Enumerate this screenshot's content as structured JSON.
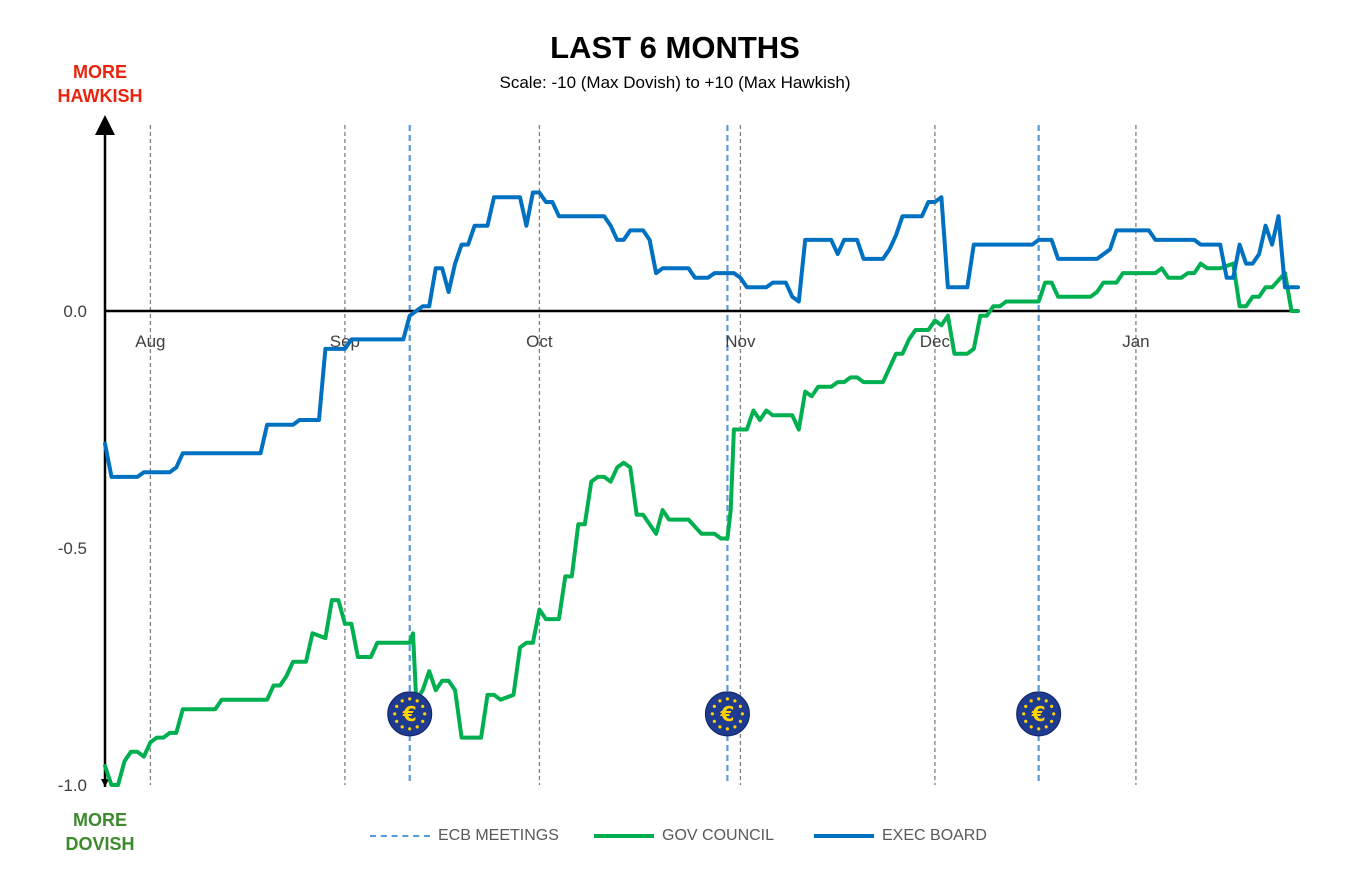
{
  "chart_data": {
    "type": "line",
    "title": "LAST 6 MONTHS",
    "subtitle": "Scale: -10 (Max Dovish)  to +10 (Max Hawkish)",
    "y_top_label": [
      "MORE",
      "HAWKISH"
    ],
    "y_bottom_label": [
      "MORE",
      "DOVISH"
    ],
    "ylim": [
      -1.0,
      0.4
    ],
    "y_ticks": [
      {
        "value": 0.0,
        "label": "0.0"
      },
      {
        "value": -0.5,
        "label": "-0.5"
      },
      {
        "value": -1.0,
        "label": "-1.0"
      }
    ],
    "xlim": [
      0,
      184
    ],
    "month_ticks": [
      {
        "x": 7,
        "label": "Aug"
      },
      {
        "x": 37,
        "label": "Sep"
      },
      {
        "x": 67,
        "label": "Oct"
      },
      {
        "x": 98,
        "label": "Nov"
      },
      {
        "x": 128,
        "label": "Dec"
      },
      {
        "x": 159,
        "label": "Jan"
      }
    ],
    "ecb_meetings": [
      47,
      96,
      144
    ],
    "ecb_marker_y": -0.85,
    "ecb_icon": "euro-icon",
    "grid": "vertical-dashed-at-months",
    "colors": {
      "gov": "#00b050",
      "exec": "#0070c0",
      "meeting": "#5b9bd5",
      "grid": "#808080"
    },
    "legend": [
      {
        "key": "meeting",
        "label": "ECB MEETINGS",
        "style": "dashed"
      },
      {
        "key": "gov",
        "label": "GOV COUNCIL",
        "style": "solid"
      },
      {
        "key": "exec",
        "label": "EXEC BOARD",
        "style": "solid"
      }
    ],
    "series": [
      {
        "name": "GOV COUNCIL",
        "key": "gov",
        "points": [
          [
            0,
            -0.96
          ],
          [
            1,
            -1.0
          ],
          [
            2,
            -1.0
          ],
          [
            3,
            -0.95
          ],
          [
            4,
            -0.93
          ],
          [
            5,
            -0.93
          ],
          [
            6,
            -0.94
          ],
          [
            7,
            -0.91
          ],
          [
            8,
            -0.9
          ],
          [
            9,
            -0.9
          ],
          [
            10,
            -0.89
          ],
          [
            11,
            -0.89
          ],
          [
            12,
            -0.84
          ],
          [
            15,
            -0.84
          ],
          [
            17,
            -0.84
          ],
          [
            18,
            -0.82
          ],
          [
            19,
            -0.82
          ],
          [
            25,
            -0.82
          ],
          [
            26,
            -0.79
          ],
          [
            27,
            -0.79
          ],
          [
            28,
            -0.77
          ],
          [
            29,
            -0.74
          ],
          [
            31,
            -0.74
          ],
          [
            32,
            -0.68
          ],
          [
            34,
            -0.69
          ],
          [
            35,
            -0.61
          ],
          [
            36,
            -0.61
          ],
          [
            37,
            -0.66
          ],
          [
            38,
            -0.66
          ],
          [
            39,
            -0.73
          ],
          [
            41,
            -0.73
          ],
          [
            42,
            -0.7
          ],
          [
            47,
            -0.7
          ],
          [
            47.5,
            -0.68
          ],
          [
            48,
            -0.82
          ],
          [
            49,
            -0.8
          ],
          [
            50,
            -0.76
          ],
          [
            51,
            -0.8
          ],
          [
            52,
            -0.78
          ],
          [
            53,
            -0.78
          ],
          [
            54,
            -0.8
          ],
          [
            55,
            -0.9
          ],
          [
            58,
            -0.9
          ],
          [
            59,
            -0.81
          ],
          [
            60,
            -0.81
          ],
          [
            61,
            -0.82
          ],
          [
            63,
            -0.81
          ],
          [
            64,
            -0.71
          ],
          [
            65,
            -0.7
          ],
          [
            66,
            -0.7
          ],
          [
            67,
            -0.63
          ],
          [
            68,
            -0.65
          ],
          [
            70,
            -0.65
          ],
          [
            71,
            -0.56
          ],
          [
            72,
            -0.56
          ],
          [
            73,
            -0.45
          ],
          [
            74,
            -0.45
          ],
          [
            75,
            -0.36
          ],
          [
            76,
            -0.35
          ],
          [
            77,
            -0.35
          ],
          [
            78,
            -0.36
          ],
          [
            79,
            -0.33
          ],
          [
            80,
            -0.32
          ],
          [
            81,
            -0.33
          ],
          [
            82,
            -0.43
          ],
          [
            83,
            -0.43
          ],
          [
            85,
            -0.47
          ],
          [
            86,
            -0.42
          ],
          [
            87,
            -0.44
          ],
          [
            90,
            -0.44
          ],
          [
            92,
            -0.47
          ],
          [
            94,
            -0.47
          ],
          [
            95,
            -0.48
          ],
          [
            96,
            -0.48
          ],
          [
            96.5,
            -0.42
          ],
          [
            97,
            -0.25
          ],
          [
            99,
            -0.25
          ],
          [
            100,
            -0.21
          ],
          [
            101,
            -0.23
          ],
          [
            102,
            -0.21
          ],
          [
            103,
            -0.22
          ],
          [
            106,
            -0.22
          ],
          [
            107,
            -0.25
          ],
          [
            108,
            -0.17
          ],
          [
            109,
            -0.18
          ],
          [
            110,
            -0.16
          ],
          [
            112,
            -0.16
          ],
          [
            113,
            -0.15
          ],
          [
            114,
            -0.15
          ],
          [
            115,
            -0.14
          ],
          [
            116,
            -0.14
          ],
          [
            117,
            -0.15
          ],
          [
            120,
            -0.15
          ],
          [
            121,
            -0.12
          ],
          [
            122,
            -0.09
          ],
          [
            123,
            -0.09
          ],
          [
            124,
            -0.06
          ],
          [
            125,
            -0.04
          ],
          [
            127,
            -0.04
          ],
          [
            128,
            -0.02
          ],
          [
            129,
            -0.03
          ],
          [
            130,
            -0.01
          ],
          [
            131,
            -0.09
          ],
          [
            133,
            -0.09
          ],
          [
            134,
            -0.08
          ],
          [
            135,
            -0.01
          ],
          [
            136,
            -0.01
          ],
          [
            137,
            0.01
          ],
          [
            138,
            0.01
          ],
          [
            139,
            0.02
          ],
          [
            144,
            0.02
          ],
          [
            145,
            0.06
          ],
          [
            146,
            0.06
          ],
          [
            147,
            0.03
          ],
          [
            152,
            0.03
          ],
          [
            153,
            0.04
          ],
          [
            154,
            0.06
          ],
          [
            156,
            0.06
          ],
          [
            157,
            0.08
          ],
          [
            162,
            0.08
          ],
          [
            163,
            0.09
          ],
          [
            164,
            0.07
          ],
          [
            166,
            0.07
          ],
          [
            167,
            0.08
          ],
          [
            168,
            0.08
          ],
          [
            169,
            0.1
          ],
          [
            170,
            0.09
          ],
          [
            172,
            0.09
          ],
          [
            174,
            0.1
          ],
          [
            175,
            0.01
          ],
          [
            176,
            0.01
          ],
          [
            177,
            0.03
          ],
          [
            178,
            0.03
          ],
          [
            179,
            0.05
          ],
          [
            180,
            0.05
          ],
          [
            182,
            0.08
          ],
          [
            183,
            0.0
          ],
          [
            184,
            0.0
          ]
        ]
      },
      {
        "name": "EXEC BOARD",
        "key": "exec",
        "points": [
          [
            0,
            -0.28
          ],
          [
            1,
            -0.35
          ],
          [
            4,
            -0.35
          ],
          [
            5,
            -0.35
          ],
          [
            6,
            -0.34
          ],
          [
            10,
            -0.34
          ],
          [
            11,
            -0.33
          ],
          [
            12,
            -0.3
          ],
          [
            24,
            -0.3
          ],
          [
            25,
            -0.24
          ],
          [
            29,
            -0.24
          ],
          [
            30,
            -0.23
          ],
          [
            33,
            -0.23
          ],
          [
            34,
            -0.08
          ],
          [
            37,
            -0.08
          ],
          [
            38,
            -0.06
          ],
          [
            46,
            -0.06
          ],
          [
            47,
            -0.01
          ],
          [
            48,
            0.0
          ],
          [
            49,
            0.01
          ],
          [
            50,
            0.01
          ],
          [
            51,
            0.09
          ],
          [
            52,
            0.09
          ],
          [
            53,
            0.04
          ],
          [
            54,
            0.1
          ],
          [
            55,
            0.14
          ],
          [
            56,
            0.14
          ],
          [
            57,
            0.18
          ],
          [
            58,
            0.18
          ],
          [
            59,
            0.18
          ],
          [
            60,
            0.24
          ],
          [
            64,
            0.24
          ],
          [
            65,
            0.18
          ],
          [
            66,
            0.25
          ],
          [
            67,
            0.25
          ],
          [
            68,
            0.23
          ],
          [
            69,
            0.23
          ],
          [
            70,
            0.2
          ],
          [
            77,
            0.2
          ],
          [
            78,
            0.18
          ],
          [
            79,
            0.15
          ],
          [
            80,
            0.15
          ],
          [
            81,
            0.17
          ],
          [
            83,
            0.17
          ],
          [
            84,
            0.15
          ],
          [
            85,
            0.08
          ],
          [
            86,
            0.09
          ],
          [
            90,
            0.09
          ],
          [
            91,
            0.07
          ],
          [
            93,
            0.07
          ],
          [
            94,
            0.08
          ],
          [
            97,
            0.08
          ],
          [
            98,
            0.07
          ],
          [
            99,
            0.05
          ],
          [
            101,
            0.05
          ],
          [
            102,
            0.05
          ],
          [
            103,
            0.06
          ],
          [
            105,
            0.06
          ],
          [
            106,
            0.03
          ],
          [
            107,
            0.02
          ],
          [
            108,
            0.15
          ],
          [
            112,
            0.15
          ],
          [
            113,
            0.12
          ],
          [
            114,
            0.15
          ],
          [
            116,
            0.15
          ],
          [
            117,
            0.11
          ],
          [
            120,
            0.11
          ],
          [
            121,
            0.13
          ],
          [
            122,
            0.16
          ],
          [
            123,
            0.2
          ],
          [
            126,
            0.2
          ],
          [
            127,
            0.23
          ],
          [
            128,
            0.23
          ],
          [
            129,
            0.24
          ],
          [
            130,
            0.05
          ],
          [
            133,
            0.05
          ],
          [
            134,
            0.14
          ],
          [
            143,
            0.14
          ],
          [
            144,
            0.15
          ],
          [
            146,
            0.15
          ],
          [
            147,
            0.11
          ],
          [
            153,
            0.11
          ],
          [
            154,
            0.12
          ],
          [
            155,
            0.13
          ],
          [
            156,
            0.17
          ],
          [
            161,
            0.17
          ],
          [
            162,
            0.15
          ],
          [
            168,
            0.15
          ],
          [
            169,
            0.14
          ],
          [
            172,
            0.14
          ],
          [
            173,
            0.07
          ],
          [
            174,
            0.07
          ],
          [
            175,
            0.14
          ],
          [
            176,
            0.1
          ],
          [
            177,
            0.1
          ],
          [
            178,
            0.12
          ],
          [
            179,
            0.18
          ],
          [
            180,
            0.14
          ],
          [
            181,
            0.2
          ],
          [
            182,
            0.05
          ],
          [
            184,
            0.05
          ]
        ]
      }
    ]
  }
}
